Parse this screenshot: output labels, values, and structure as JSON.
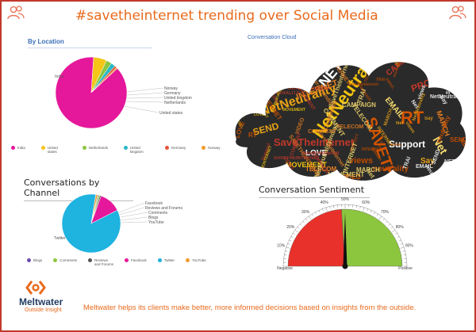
{
  "title": "#savetheinternet trending over Social Media",
  "brand": {
    "name": "Meltwater",
    "tagline": "Outside Insight",
    "accent": "#e86a1c",
    "navy": "#1e3a5f"
  },
  "footer": "Meltwater helps its clients make better, more informed decisions based on insights from the outside.",
  "icons": [
    "people-icon",
    "meltwater-logo-icon"
  ],
  "chart_data": [
    {
      "type": "pie",
      "title": "By Location",
      "labels": [
        "India",
        "United states",
        "Netherlands",
        "United kingdom",
        "Germany",
        "Norway"
      ],
      "values": [
        88,
        6,
        2.5,
        2,
        1,
        0.5
      ],
      "colors": [
        "#e5179b",
        "#f5c518",
        "#8dc63f",
        "#27b8c6",
        "#e6553a",
        "#f29b2c"
      ],
      "legend": "bottom"
    },
    {
      "type": "wordcloud",
      "title": "Conversation Cloud",
      "words": [
        "NetNeutrality",
        "NETNEUTRALITY",
        "SAVETHEINTERNET",
        "NetNeutralityIndia",
        "SaveTheInternet",
        "INTERNET",
        "TRAI",
        "views",
        "SEND",
        "Support",
        "RT",
        "COMMENT",
        "PROTECT",
        "TELECOM",
        "Net",
        "neutrality",
        "Say",
        "LOVE",
        "VIDEO",
        "MOVEMENT",
        "CAMPAIGN",
        "MARCH",
        "EMAIL"
      ]
    },
    {
      "type": "pie",
      "title": "Conversations by Channel",
      "labels": [
        "Blogs",
        "Comments",
        "Reviews and Forums",
        "Facebook",
        "Twitter",
        "YouTube"
      ],
      "values": [
        0.5,
        0.8,
        0.7,
        12,
        85,
        1
      ],
      "colors": [
        "#6b4ea8",
        "#8dc63f",
        "#555555",
        "#e5179b",
        "#1fb3e0",
        "#f29b2c"
      ],
      "legend": "bottom"
    },
    {
      "type": "gauge",
      "title": "Conversation Sentiment",
      "min_label": "Negative",
      "max_label": "Positive",
      "ticks": [
        "10%",
        "20%",
        "30%",
        "40%",
        "50%",
        "60%",
        "70%",
        "80%",
        "90%"
      ],
      "negative": 48,
      "positive": 52,
      "value": 50,
      "colors": {
        "negative": "#e8312a",
        "positive": "#8cc63f"
      }
    }
  ]
}
